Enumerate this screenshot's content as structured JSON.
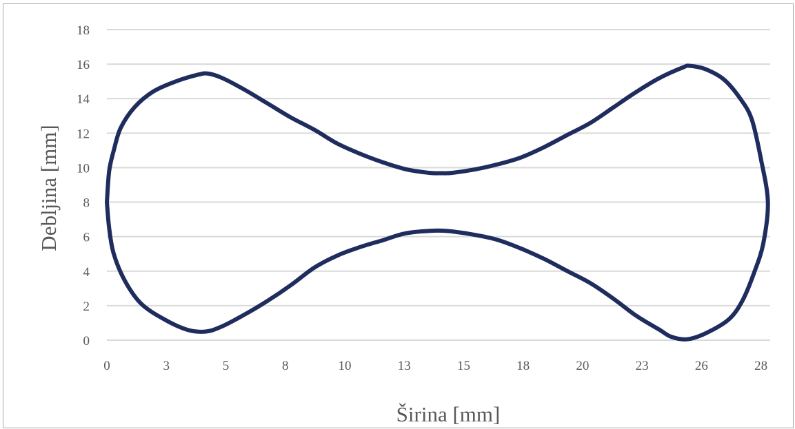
{
  "chart_data": {
    "type": "scatter",
    "xlabel": "Širina [mm]",
    "ylabel": "Debljina [mm]",
    "xlim": [
      0,
      28.8
    ],
    "ylim": [
      0,
      18
    ],
    "grid": true,
    "xtick_labels": [
      "0",
      "3",
      "5",
      "8",
      "10",
      "13",
      "15",
      "18",
      "20",
      "23",
      "26",
      "28"
    ],
    "yticks": [
      0,
      2,
      4,
      6,
      8,
      10,
      12,
      14,
      16,
      18
    ],
    "ytick_labels": [
      "0",
      "2",
      "4",
      "6",
      "8",
      "10",
      "12",
      "14",
      "16",
      "18"
    ],
    "line_color": "#1f2d5e",
    "series": [
      {
        "points": [
          [
            0.0,
            8.0
          ],
          [
            0.1,
            9.8
          ],
          [
            0.3,
            11.0
          ],
          [
            0.6,
            12.3
          ],
          [
            1.2,
            13.5
          ],
          [
            2.0,
            14.4
          ],
          [
            3.0,
            15.0
          ],
          [
            4.0,
            15.4
          ],
          [
            4.4,
            15.45
          ],
          [
            5.0,
            15.2
          ],
          [
            6.0,
            14.5
          ],
          [
            7.0,
            13.7
          ],
          [
            8.0,
            12.9
          ],
          [
            9.0,
            12.2
          ],
          [
            10.0,
            11.4
          ],
          [
            11.0,
            10.8
          ],
          [
            12.0,
            10.3
          ],
          [
            13.0,
            9.9
          ],
          [
            14.0,
            9.7
          ],
          [
            14.5,
            9.68
          ],
          [
            15.0,
            9.7
          ],
          [
            16.0,
            9.9
          ],
          [
            17.0,
            10.2
          ],
          [
            18.0,
            10.6
          ],
          [
            19.0,
            11.2
          ],
          [
            20.0,
            11.9
          ],
          [
            21.0,
            12.6
          ],
          [
            22.0,
            13.5
          ],
          [
            23.0,
            14.4
          ],
          [
            24.0,
            15.2
          ],
          [
            25.0,
            15.8
          ],
          [
            25.3,
            15.9
          ],
          [
            26.0,
            15.7
          ],
          [
            26.8,
            15.1
          ],
          [
            27.5,
            14.0
          ],
          [
            28.0,
            12.8
          ],
          [
            28.4,
            10.5
          ],
          [
            28.7,
            8.0
          ],
          [
            28.5,
            5.6
          ],
          [
            28.1,
            3.9
          ],
          [
            27.6,
            2.3
          ],
          [
            27.0,
            1.2
          ],
          [
            26.0,
            0.4
          ],
          [
            25.2,
            0.05
          ],
          [
            24.5,
            0.2
          ],
          [
            24.0,
            0.6
          ],
          [
            23.0,
            1.4
          ],
          [
            22.0,
            2.4
          ],
          [
            21.0,
            3.3
          ],
          [
            20.0,
            4.0
          ],
          [
            19.0,
            4.7
          ],
          [
            18.0,
            5.3
          ],
          [
            17.0,
            5.8
          ],
          [
            16.0,
            6.1
          ],
          [
            15.0,
            6.3
          ],
          [
            14.3,
            6.35
          ],
          [
            13.0,
            6.2
          ],
          [
            12.0,
            5.8
          ],
          [
            11.0,
            5.4
          ],
          [
            10.0,
            4.9
          ],
          [
            9.0,
            4.2
          ],
          [
            8.0,
            3.2
          ],
          [
            7.0,
            2.3
          ],
          [
            6.0,
            1.5
          ],
          [
            5.0,
            0.8
          ],
          [
            4.3,
            0.5
          ],
          [
            3.5,
            0.6
          ],
          [
            2.5,
            1.2
          ],
          [
            1.5,
            2.1
          ],
          [
            0.8,
            3.4
          ],
          [
            0.3,
            5.0
          ],
          [
            0.1,
            6.5
          ],
          [
            0.0,
            8.0
          ]
        ]
      }
    ]
  }
}
